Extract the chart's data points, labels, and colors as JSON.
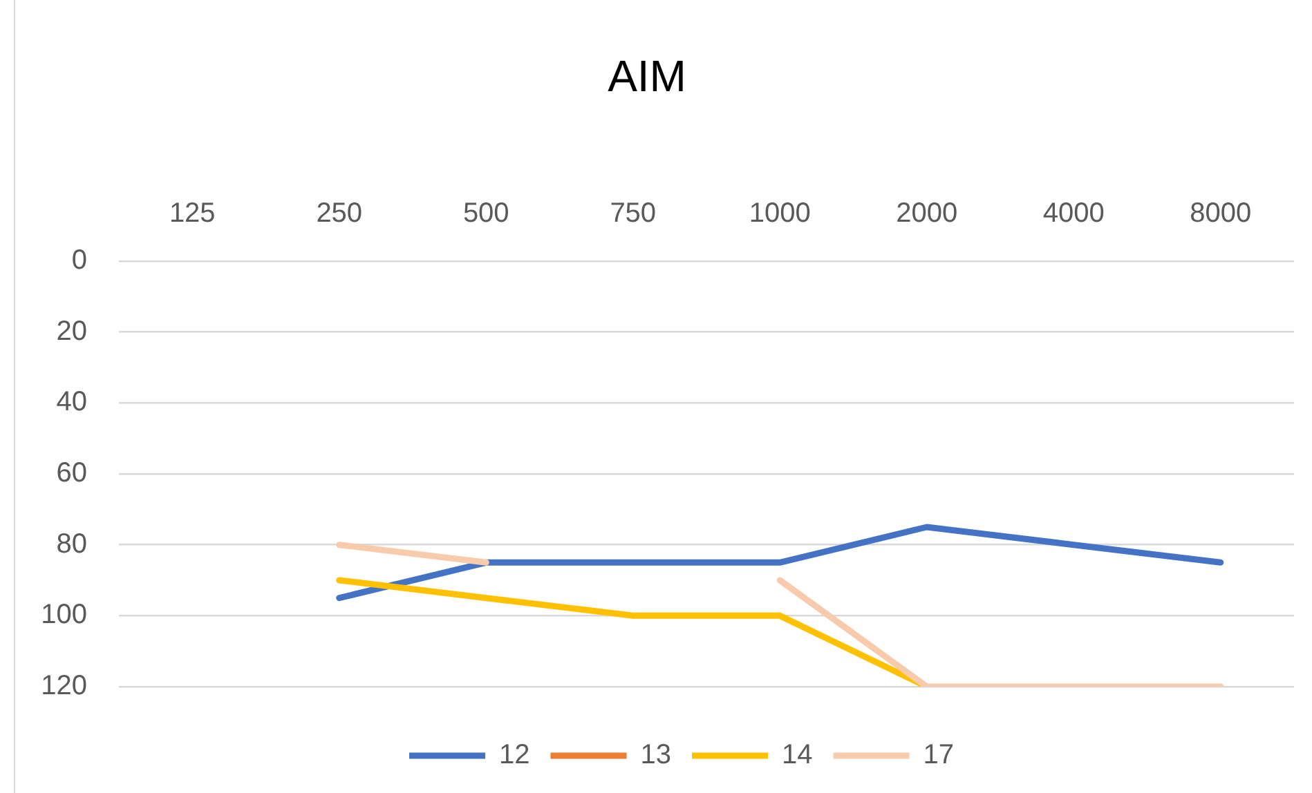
{
  "chart_data": {
    "type": "line",
    "title": "AIM",
    "categories": [
      "125",
      "250",
      "500",
      "750",
      "1000",
      "2000",
      "4000",
      "8000"
    ],
    "series": [
      {
        "name": "12",
        "color": "#4472c4",
        "values": [
          null,
          95,
          85,
          85,
          85,
          75,
          80,
          85
        ]
      },
      {
        "name": "13",
        "color": "#ed7d31",
        "values": [
          null,
          null,
          null,
          null,
          null,
          null,
          null,
          null
        ]
      },
      {
        "name": "14",
        "color": "#ffc000",
        "values": [
          null,
          90,
          95,
          100,
          100,
          120,
          null,
          null
        ]
      },
      {
        "name": "17",
        "color": "#f8cbad",
        "values": [
          null,
          80,
          85,
          null,
          90,
          120,
          120,
          120
        ]
      }
    ],
    "ylim": [
      120,
      0
    ],
    "yticks": [
      0,
      20,
      40,
      60,
      80,
      100,
      120
    ],
    "grid": "y",
    "legend": "bottom",
    "marker": "none",
    "line_style": "solid"
  }
}
